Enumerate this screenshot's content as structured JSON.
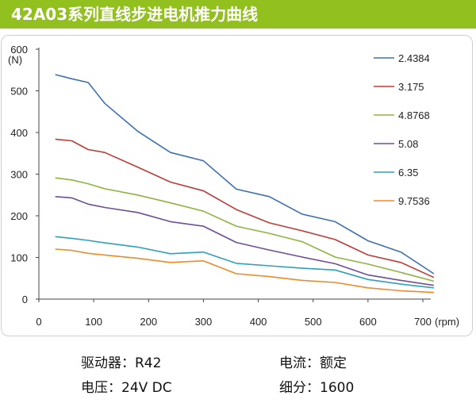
{
  "title": "42A03系列直线步进电机推力曲线",
  "colors": {
    "banner": "#92c01e"
  },
  "chart_data": {
    "type": "line",
    "title": "",
    "xlabel": "(rpm)",
    "ylabel": "(N)",
    "xlim": [
      0,
      700
    ],
    "ylim": [
      0,
      600
    ],
    "x_ticks": [
      "0",
      "100",
      "200",
      "300",
      "400",
      "500",
      "600",
      "700"
    ],
    "y_ticks": [
      "0",
      "100",
      "200",
      "300",
      "400",
      "500",
      "600"
    ],
    "grid": false,
    "legend_position": "right",
    "x": [
      30,
      60,
      90,
      120,
      180,
      240,
      300,
      360,
      420,
      480,
      540,
      600,
      660,
      720
    ],
    "series": [
      {
        "name": "2.4384",
        "color": "#3d6fb4",
        "values": [
          539,
          529,
          520,
          470,
          403,
          352,
          332,
          264,
          246,
          204,
          186,
          140,
          113,
          61
        ]
      },
      {
        "name": "3.175",
        "color": "#bf3b38",
        "values": [
          384,
          380,
          359,
          352,
          317,
          281,
          260,
          215,
          183,
          164,
          143,
          106,
          88,
          52
        ]
      },
      {
        "name": "4.8768",
        "color": "#8db43e",
        "values": [
          291,
          286,
          277,
          265,
          250,
          231,
          211,
          175,
          158,
          138,
          101,
          84,
          64,
          43
        ]
      },
      {
        "name": "5.08",
        "color": "#6d4e98",
        "values": [
          246,
          243,
          228,
          220,
          208,
          186,
          175,
          136,
          118,
          101,
          85,
          58,
          45,
          33
        ]
      },
      {
        "name": "6.35",
        "color": "#2fa0bb",
        "values": [
          150,
          146,
          141,
          135,
          125,
          109,
          113,
          86,
          80,
          74,
          70,
          47,
          36,
          27
        ]
      },
      {
        "name": "9.7536",
        "color": "#ef8a2a",
        "values": [
          120,
          117,
          110,
          106,
          98,
          88,
          92,
          61,
          54,
          45,
          40,
          27,
          20,
          16
        ]
      }
    ]
  },
  "specs": {
    "driver_label": "驱动器：",
    "driver_value": "R42",
    "current_label": "电流：",
    "current_value": "额定",
    "voltage_label": "电压：",
    "voltage_value": "24V DC",
    "microstep_label": "细分：",
    "microstep_value": "1600"
  }
}
